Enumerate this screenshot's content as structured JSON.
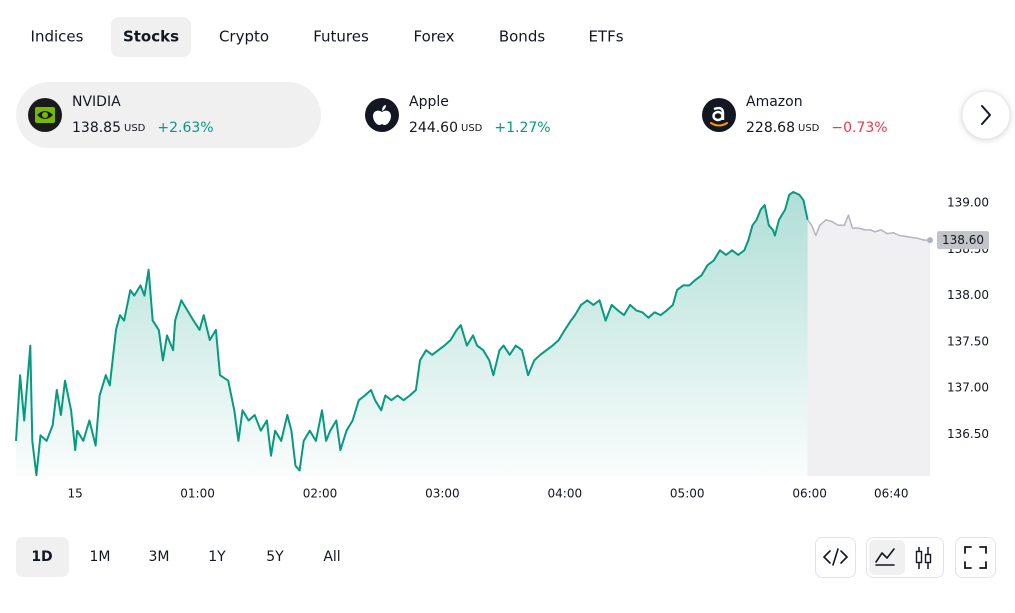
{
  "tabs": {
    "items": [
      "Indices",
      "Stocks",
      "Crypto",
      "Futures",
      "Forex",
      "Bonds",
      "ETFs"
    ],
    "selected_index": 1
  },
  "tickers": {
    "selected_index": 0,
    "items": [
      {
        "name": "NVIDIA",
        "price": "138.85",
        "currency": "USD",
        "change": "+2.63%",
        "color": "#089981"
      },
      {
        "name": "Apple",
        "price": "244.60",
        "currency": "USD",
        "change": "+1.27%",
        "color": "#089981"
      },
      {
        "name": "Amazon",
        "price": "228.68",
        "currency": "USD",
        "change": "−0.73%",
        "color": "#f23645"
      }
    ]
  },
  "chart_data": {
    "type": "line",
    "xlim": [
      -29,
      419
    ],
    "xticks": [
      {
        "value": 0,
        "label": "15"
      },
      {
        "value": 60,
        "label": "01:00"
      },
      {
        "value": 120,
        "label": "02:00"
      },
      {
        "value": 180,
        "label": "03:00"
      },
      {
        "value": 240,
        "label": "04:00"
      },
      {
        "value": 300,
        "label": "05:00"
      },
      {
        "value": 360,
        "label": "06:00"
      },
      {
        "value": 400,
        "label": "06:40"
      }
    ],
    "ylim": [
      136.05,
      139.25
    ],
    "yticks": [
      {
        "value": 136.5,
        "label": "136.50"
      },
      {
        "value": 137,
        "label": "137.00"
      },
      {
        "value": 137.5,
        "label": "137.50"
      },
      {
        "value": 138,
        "label": "138.00"
      },
      {
        "value": 138.5,
        "label": "138.50"
      },
      {
        "value": 139,
        "label": "139.00"
      }
    ],
    "grid": false,
    "price_tag": {
      "value": 138.6,
      "label": "138.60"
    },
    "series": [
      {
        "color": "#089981",
        "x": [
          -29,
          -27,
          -25,
          -22,
          -21,
          -19,
          -17,
          -14,
          -11,
          -9,
          -7,
          -5,
          -2,
          0,
          1,
          4,
          7,
          10,
          12,
          15,
          17,
          20,
          22,
          24,
          27,
          29,
          32,
          34,
          36,
          38,
          41,
          43,
          45,
          48,
          49,
          52,
          55,
          58,
          61,
          63,
          66,
          69,
          71,
          75,
          78,
          80,
          82,
          85,
          88,
          91,
          94,
          96,
          98,
          101,
          104,
          106,
          108,
          110,
          112,
          115,
          118,
          121,
          123,
          125,
          128,
          130,
          133,
          136,
          139,
          142,
          145,
          147,
          150,
          152,
          155,
          158,
          161,
          164,
          167,
          169,
          172,
          175,
          178,
          181,
          184,
          187,
          189,
          192,
          195,
          197,
          200,
          203,
          205,
          208,
          210,
          213,
          216,
          219,
          222,
          225,
          228,
          231,
          234,
          237,
          240,
          243,
          245,
          248,
          251,
          254,
          257,
          260,
          263,
          266,
          269,
          272,
          275,
          278,
          281,
          284,
          287,
          290,
          293,
          295,
          298,
          301,
          304,
          307,
          310,
          313,
          316,
          319,
          322,
          325,
          328,
          330,
          332,
          334,
          336,
          338,
          340,
          342,
          343,
          345,
          348,
          350,
          352,
          355,
          357,
          359
        ],
        "values": [
          136.43,
          137.14,
          136.65,
          137.46,
          136.43,
          136.06,
          136.49,
          136.43,
          136.6,
          136.98,
          136.71,
          137.08,
          136.76,
          136.33,
          136.54,
          136.43,
          136.65,
          136.38,
          136.92,
          137.14,
          137.03,
          137.63,
          137.79,
          137.73,
          138.06,
          138.0,
          138.11,
          138.0,
          138.28,
          137.73,
          137.63,
          137.3,
          137.57,
          137.41,
          137.73,
          137.95,
          137.84,
          137.73,
          137.63,
          137.79,
          137.52,
          137.63,
          137.14,
          137.08,
          136.76,
          136.43,
          136.76,
          136.65,
          136.71,
          136.54,
          136.65,
          136.27,
          136.54,
          136.43,
          136.71,
          136.54,
          136.16,
          136.11,
          136.43,
          136.54,
          136.43,
          136.76,
          136.43,
          136.54,
          136.65,
          136.33,
          136.54,
          136.65,
          136.87,
          136.92,
          136.98,
          136.87,
          136.76,
          136.92,
          136.87,
          136.92,
          136.87,
          136.92,
          136.98,
          137.3,
          137.41,
          137.36,
          137.41,
          137.46,
          137.52,
          137.63,
          137.68,
          137.46,
          137.57,
          137.46,
          137.41,
          137.3,
          137.14,
          137.41,
          137.46,
          137.36,
          137.46,
          137.41,
          137.14,
          137.3,
          137.36,
          137.41,
          137.46,
          137.52,
          137.63,
          137.73,
          137.79,
          137.9,
          137.95,
          137.9,
          137.95,
          137.73,
          137.9,
          137.84,
          137.79,
          137.9,
          137.84,
          137.82,
          137.76,
          137.82,
          137.79,
          137.84,
          137.9,
          138.06,
          138.11,
          138.11,
          138.17,
          138.22,
          138.33,
          138.38,
          138.49,
          138.44,
          138.49,
          138.44,
          138.49,
          138.6,
          138.76,
          138.82,
          138.93,
          138.98,
          138.76,
          138.71,
          138.65,
          138.82,
          138.93,
          139.09,
          139.12,
          139.09,
          139.03,
          138.82
        ]
      },
      {
        "color": "#b2b5be",
        "x": [
          359,
          361,
          363,
          365,
          368,
          371,
          374,
          377,
          379,
          381,
          384,
          387,
          390,
          392,
          395,
          398,
          401,
          404,
          407,
          410,
          413,
          416,
          419
        ],
        "values": [
          138.82,
          138.76,
          138.65,
          138.76,
          138.82,
          138.8,
          138.76,
          138.76,
          138.87,
          138.73,
          138.73,
          138.71,
          138.71,
          138.69,
          138.71,
          138.67,
          138.68,
          138.65,
          138.64,
          138.63,
          138.62,
          138.6,
          138.6
        ]
      }
    ]
  },
  "ranges": {
    "items": [
      "1D",
      "1M",
      "3M",
      "1Y",
      "5Y",
      "All"
    ],
    "selected_index": 0
  }
}
